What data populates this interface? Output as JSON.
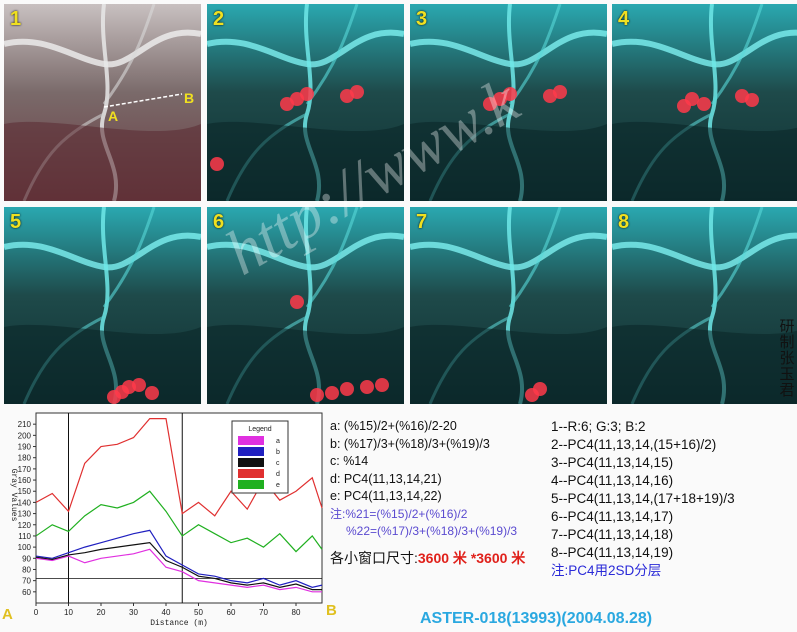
{
  "tiles": [
    {
      "label": "1"
    },
    {
      "label": "2"
    },
    {
      "label": "3"
    },
    {
      "label": "4"
    },
    {
      "label": "5"
    },
    {
      "label": "6"
    },
    {
      "label": "7"
    },
    {
      "label": "8"
    }
  ],
  "point_labels": {
    "a": "A",
    "b": "B"
  },
  "watermark": "http://www.k",
  "vertical_text": [
    "研",
    "制",
    "张",
    "玉",
    "君"
  ],
  "chart_data": {
    "type": "line",
    "ylabel": "Gray Values",
    "xlabel": "Distance (m)",
    "x": [
      0,
      5,
      10,
      15,
      20,
      25,
      30,
      35,
      40,
      45,
      50,
      55,
      60,
      65,
      70,
      75,
      80,
      85,
      88
    ],
    "ylim": [
      50,
      220
    ],
    "xlim": [
      0,
      88
    ],
    "yticks": [
      60,
      70,
      80,
      90,
      100,
      110,
      120,
      130,
      140,
      150,
      160,
      170,
      180,
      190,
      200,
      210
    ],
    "xticks": [
      0,
      10,
      20,
      30,
      40,
      50,
      60,
      70,
      80
    ],
    "legend_title": "Legend",
    "series": [
      {
        "name": "a",
        "color": "#e030e0",
        "values": [
          90,
          88,
          92,
          86,
          90,
          92,
          94,
          98,
          82,
          78,
          70,
          68,
          66,
          64,
          66,
          62,
          64,
          60,
          60
        ]
      },
      {
        "name": "b",
        "color": "#2020c0",
        "values": [
          92,
          90,
          95,
          100,
          104,
          108,
          112,
          115,
          92,
          84,
          76,
          74,
          70,
          68,
          72,
          66,
          70,
          64,
          66
        ]
      },
      {
        "name": "c",
        "color": "#111111",
        "values": [
          91,
          89,
          93,
          95,
          98,
          100,
          102,
          104,
          88,
          82,
          74,
          72,
          68,
          66,
          68,
          64,
          67,
          62,
          62
        ]
      },
      {
        "name": "d",
        "color": "#e03030",
        "values": [
          140,
          148,
          132,
          175,
          190,
          192,
          198,
          215,
          215,
          130,
          140,
          128,
          150,
          134,
          160,
          142,
          150,
          162,
          135
        ]
      },
      {
        "name": "e",
        "color": "#20b020",
        "values": [
          110,
          120,
          114,
          128,
          138,
          135,
          140,
          150,
          132,
          110,
          120,
          112,
          104,
          108,
          100,
          112,
          96,
          110,
          98
        ]
      }
    ],
    "markers": {
      "left": "A",
      "right": "B"
    }
  },
  "formulas": [
    "a: (%15)/2+(%16)/2-20",
    "b: (%17)/3+(%18)/3+(%19)/3",
    "c: %14",
    "d: PC4(11,13,14,21)",
    "e: PC4(11,13,14,22)"
  ],
  "formula_notes": [
    "注:%21=(%15)/2+(%16)/2",
    "%22=(%17)/3+(%18)/3+(%19)/3"
  ],
  "window_size": {
    "label": "各小窗口尺寸:",
    "value": "3600 米 *3600 米"
  },
  "bands": [
    "1--R:6; G:3; B:2",
    "2--PC4(11,13,14,(15+16)/2)",
    "3--PC4(11,13,14,15)",
    "4--PC4(11,13,14,16)",
    "5--PC4(11,13,14,(17+18+19)/3",
    "6--PC4(11,13,14,17)",
    "7--PC4(11,13,14,18)",
    "8--PC4(11,13,14,19)"
  ],
  "bands_note": "注:PC4用2SD分层",
  "aster": "ASTER-018(13993)(2004.08.28)"
}
